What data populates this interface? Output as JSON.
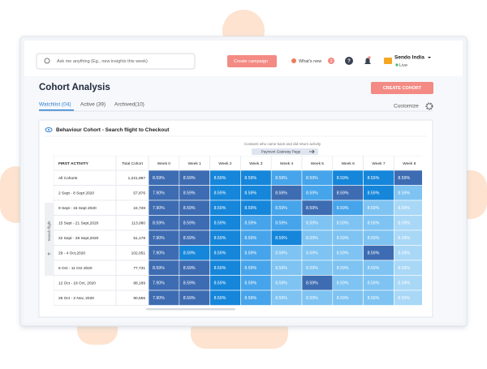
{
  "topbar": {
    "search_placeholder": "Ask me anything (Eg., new insights this week)",
    "create_campaign": "Create campaign",
    "whats_new": "What's new",
    "whats_new_count": 2,
    "account": "Sendo India",
    "status": "Live"
  },
  "header": {
    "title": "Cohort Analysis",
    "create_button": "CREATE COHORT",
    "tabs": [
      "Watchlist (04)",
      "Active (39)",
      "Archived(10)"
    ],
    "customize": "Customize"
  },
  "panel": {
    "title": "Behaviour Cohort - Search flight to Checkout",
    "caption": "Contacts who came back and did return activity",
    "event": "Payment Gateway Page",
    "side_label": "Search flight"
  },
  "table": {
    "columns": [
      "FIRST ACTIVITY",
      "Total Cohort",
      "Week 0",
      "Week 1",
      "Week 2",
      "Week 3",
      "Week 4",
      "Week 5",
      "Week 6",
      "Week 7",
      "Week 8"
    ],
    "rows": [
      [
        "All Cohorts",
        "1,221,987",
        "8.59%",
        "8.59%",
        "8.59%",
        "8.59%",
        "8.59%",
        "8.59%",
        "8.59%",
        "8.59%",
        "8.59%"
      ],
      [
        "2 Sept - 8 Sept 2020",
        "57,876",
        "7.90%",
        "8.59%",
        "8.59%",
        "8.59%",
        "8.59%",
        "8.59%",
        "8.59%",
        "8.59%",
        "8.59%"
      ],
      [
        "9 Sept - 15 Sept 2020",
        "24,728",
        "7.90%",
        "8.59%",
        "8.59%",
        "8.59%",
        "8.59%",
        "8.59%",
        "8.59%",
        "8.59%",
        "8.59%"
      ],
      [
        "15 Sept - 21 Sept,2020",
        "113,080",
        "8.59%",
        "8.59%",
        "8.59%",
        "8.59%",
        "8.59%",
        "8.59%",
        "8.59%",
        "8.59%",
        "8.59%"
      ],
      [
        "22 Sept - 28 Sept,2020",
        "51,178",
        "7.90%",
        "8.59%",
        "8.59%",
        "8.59%",
        "8.59%",
        "8.59%",
        "8.59%",
        "8.59%",
        "8.59%"
      ],
      [
        "29 - 4 Oct,2020",
        "102,051",
        "7.90%",
        "8.59%",
        "8.59%",
        "8.59%",
        "8.59%",
        "8.59%",
        "8.59%",
        "8.59%",
        "8.59%"
      ],
      [
        "5 Oct - 11 Oct 2020",
        "77,731",
        "8.59%",
        "8.59%",
        "8.59%",
        "8.59%",
        "8.59%",
        "8.59%",
        "8.59%",
        "8.59%",
        "8.59%"
      ],
      [
        "12 Oct - 18 Oct, 2020",
        "88,189",
        "7.90%",
        "8.59%",
        "8.59%",
        "8.59%",
        "8.59%",
        "8.59%",
        "8.59%",
        "8.59%",
        "8.59%"
      ],
      [
        "26 Oct - 2 Nov, 2020",
        "90,555",
        "7.90%",
        "8.59%",
        "8.59%",
        "8.59%",
        "8.59%",
        "8.59%",
        "8.59%",
        "8.59%",
        "8.59%"
      ]
    ]
  }
}
